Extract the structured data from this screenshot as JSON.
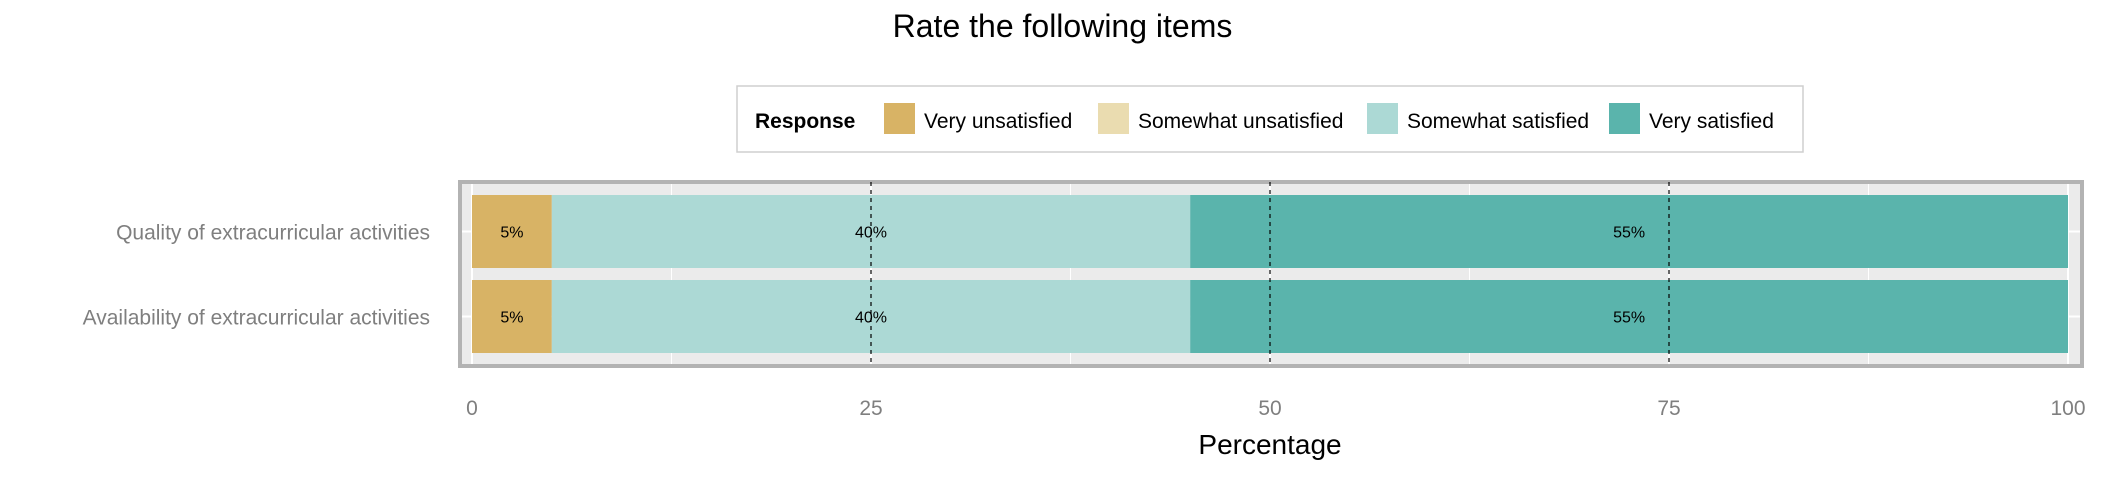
{
  "chart_data": {
    "type": "bar",
    "orientation": "horizontal",
    "stacked": true,
    "title": "Rate the following items",
    "xlabel": "Percentage",
    "ylabel": "",
    "xlim": [
      0,
      100
    ],
    "xticks": [
      0,
      25,
      50,
      75,
      100
    ],
    "reference_lines": [
      25,
      50,
      75
    ],
    "grid": true,
    "legend": {
      "title": "Response",
      "position": "top"
    },
    "categories": [
      "Quality of extracurricular activities",
      "Availability of extracurricular activities"
    ],
    "series": [
      {
        "name": "Very unsatisfied",
        "color": "#d8b365",
        "values": [
          5,
          5
        ],
        "labels": [
          "5%",
          "5%"
        ]
      },
      {
        "name": "Somewhat unsatisfied",
        "color": "#eadcb0",
        "values": [
          0,
          0
        ],
        "labels": [
          "",
          ""
        ]
      },
      {
        "name": "Somewhat satisfied",
        "color": "#acd9d5",
        "values": [
          40,
          40
        ],
        "labels": [
          "40%",
          "40%"
        ]
      },
      {
        "name": "Very satisfied",
        "color": "#5ab4ac",
        "values": [
          55,
          55
        ],
        "labels": [
          "55%",
          "55%"
        ]
      }
    ]
  }
}
